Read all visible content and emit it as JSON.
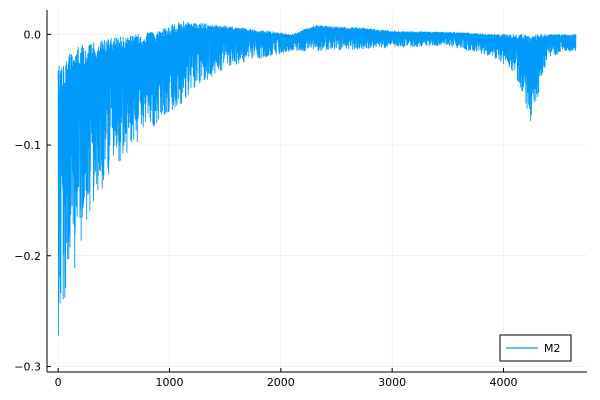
{
  "chart_data": {
    "type": "line",
    "title": "",
    "xlabel": "",
    "ylabel": "",
    "xlim": [
      -100,
      4750
    ],
    "ylim": [
      -0.305,
      0.022
    ],
    "grid": true,
    "legend_position": "bottom-right",
    "x_ticks": [
      {
        "value": 0,
        "label": "0"
      },
      {
        "value": 1000,
        "label": "1000"
      },
      {
        "value": 2000,
        "label": "2000"
      },
      {
        "value": 3000,
        "label": "3000"
      },
      {
        "value": 4000,
        "label": "4000"
      }
    ],
    "y_ticks": [
      {
        "value": 0.0,
        "label": "0.0"
      },
      {
        "value": -0.1,
        "label": "−0.1"
      },
      {
        "value": -0.2,
        "label": "−0.2"
      },
      {
        "value": -0.3,
        "label": "−0.3"
      }
    ],
    "series": [
      {
        "name": "M2",
        "color": "#009AFA",
        "x_range": [
          1,
          4650
        ],
        "upper_envelope": [
          {
            "x": 0,
            "y": -0.03
          },
          {
            "x": 50,
            "y": -0.02
          },
          {
            "x": 200,
            "y": -0.01
          },
          {
            "x": 500,
            "y": -0.003
          },
          {
            "x": 900,
            "y": 0.003
          },
          {
            "x": 1100,
            "y": 0.012
          },
          {
            "x": 1400,
            "y": 0.009
          },
          {
            "x": 1800,
            "y": 0.004
          },
          {
            "x": 2100,
            "y": 0.0
          },
          {
            "x": 2300,
            "y": 0.008
          },
          {
            "x": 2700,
            "y": 0.006
          },
          {
            "x": 3000,
            "y": 0.003
          },
          {
            "x": 3500,
            "y": 0.002
          },
          {
            "x": 4000,
            "y": 0.0
          },
          {
            "x": 4650,
            "y": 0.0
          }
        ],
        "lower_envelope": [
          {
            "x": 0,
            "y": -0.3
          },
          {
            "x": 30,
            "y": -0.25
          },
          {
            "x": 100,
            "y": -0.235
          },
          {
            "x": 200,
            "y": -0.19
          },
          {
            "x": 300,
            "y": -0.16
          },
          {
            "x": 400,
            "y": -0.14
          },
          {
            "x": 500,
            "y": -0.12
          },
          {
            "x": 700,
            "y": -0.1
          },
          {
            "x": 900,
            "y": -0.08
          },
          {
            "x": 1100,
            "y": -0.065
          },
          {
            "x": 1300,
            "y": -0.045
          },
          {
            "x": 1500,
            "y": -0.03
          },
          {
            "x": 1800,
            "y": -0.022
          },
          {
            "x": 2100,
            "y": -0.015
          },
          {
            "x": 2400,
            "y": -0.015
          },
          {
            "x": 3000,
            "y": -0.012
          },
          {
            "x": 3500,
            "y": -0.01
          },
          {
            "x": 3900,
            "y": -0.02
          },
          {
            "x": 4100,
            "y": -0.035
          },
          {
            "x": 4250,
            "y": -0.08
          },
          {
            "x": 4400,
            "y": -0.02
          },
          {
            "x": 4650,
            "y": -0.015
          }
        ]
      }
    ]
  }
}
